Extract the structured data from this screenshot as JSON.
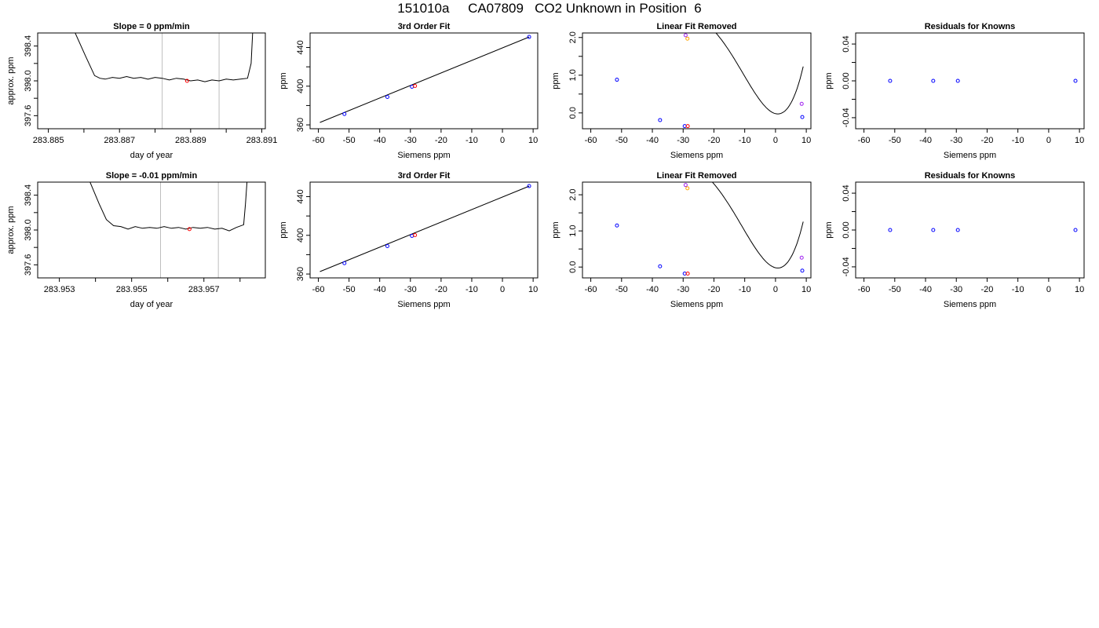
{
  "page_title": "151010a     CA07809   CO2 Unknown in Position  6",
  "colors": {
    "axis": "#000000",
    "line": "#000000",
    "guide": "#bebebe",
    "blue": "#0000ff",
    "red": "#ff0000",
    "orange": "#ffa500",
    "purple": "#a020f0"
  },
  "chart_data": [
    {
      "type": "line",
      "title": "Slope =  0  ppm/min",
      "xlabel": "day of year",
      "ylabel": "approx. ppm",
      "xlim": [
        283.8847,
        283.8911
      ],
      "ylim": [
        397.45,
        398.55
      ],
      "xticks": [
        283.885,
        283.886,
        283.887,
        283.888,
        283.889,
        283.89,
        283.891
      ],
      "xtick_labels": [
        "283.885",
        "",
        "283.887",
        "",
        "283.889",
        "",
        "283.891"
      ],
      "yticks": [
        397.6,
        397.8,
        398.0,
        398.2,
        398.4
      ],
      "ytick_labels": [
        "397.6",
        "",
        "398.0",
        "",
        "398.4"
      ],
      "vlines": [
        283.8882,
        283.8898
      ],
      "series": [
        {
          "values": [
            [
              283.8857,
              398.6
            ],
            [
              283.88605,
              398.28
            ],
            [
              283.8863,
              398.06
            ],
            [
              283.88645,
              398.03
            ],
            [
              283.8866,
              398.02
            ],
            [
              283.8868,
              398.04
            ],
            [
              283.887,
              398.03
            ],
            [
              283.8872,
              398.05
            ],
            [
              283.8874,
              398.03
            ],
            [
              283.8876,
              398.04
            ],
            [
              283.8878,
              398.02
            ],
            [
              283.888,
              398.04
            ],
            [
              283.8882,
              398.03
            ],
            [
              283.8884,
              398.01
            ],
            [
              283.8886,
              398.03
            ],
            [
              283.8888,
              398.02
            ],
            [
              283.889,
              398.0
            ],
            [
              283.8892,
              398.01
            ],
            [
              283.8894,
              397.99
            ],
            [
              283.8896,
              398.01
            ],
            [
              283.8898,
              398.0
            ],
            [
              283.89,
              398.02
            ],
            [
              283.8902,
              398.01
            ],
            [
              283.8904,
              398.02
            ],
            [
              283.8906,
              398.03
            ],
            [
              283.8907,
              398.2
            ],
            [
              283.89075,
              398.6
            ]
          ]
        }
      ],
      "points": [
        {
          "x": 283.8889,
          "y": 398.0,
          "color": "red"
        }
      ]
    },
    {
      "type": "scatter",
      "title": "3rd Order Fit",
      "xlabel": "Siemens ppm",
      "ylabel": "ppm",
      "xlim": [
        -62.7,
        11.5
      ],
      "ylim": [
        356,
        455
      ],
      "xticks": [
        -60,
        -50,
        -40,
        -30,
        -20,
        -10,
        0,
        10
      ],
      "xtick_labels": [
        "-60",
        "-50",
        "-40",
        "-30",
        "-20",
        "-10",
        "0",
        "10"
      ],
      "yticks": [
        360,
        380,
        400,
        420,
        440
      ],
      "ytick_labels": [
        "360",
        "",
        "400",
        "",
        "440"
      ],
      "curve": [
        [
          -59.5,
          362.5
        ],
        [
          8.7,
          450.9
        ]
      ],
      "points": [
        {
          "x": -51.5,
          "y": 371.2,
          "color": "blue"
        },
        {
          "x": -37.5,
          "y": 388.9,
          "color": "blue"
        },
        {
          "x": -29.5,
          "y": 399.4,
          "color": "blue"
        },
        {
          "x": -28.5,
          "y": 400.2,
          "color": "red"
        },
        {
          "x": 8.7,
          "y": 450.9,
          "color": "blue"
        }
      ]
    },
    {
      "type": "scatter",
      "title": "Linear Fit Removed",
      "xlabel": "Siemens ppm",
      "ylabel": "ppm",
      "xlim": [
        -62.7,
        11.5
      ],
      "ylim": [
        -0.42,
        2.12
      ],
      "xticks": [
        -60,
        -50,
        -40,
        -30,
        -20,
        -10,
        0,
        10
      ],
      "xtick_labels": [
        "-60",
        "-50",
        "-40",
        "-30",
        "-20",
        "-10",
        "0",
        "10"
      ],
      "yticks": [
        0.0,
        0.5,
        1.0,
        1.5,
        2.0
      ],
      "ytick_labels": [
        "0.0",
        "",
        "1.0",
        "",
        "2.0"
      ],
      "curve_poly": [
        -0.02,
        -0.02,
        0.0125,
        0.00052,
        6e-06
      ],
      "curve_range": [
        -59.5,
        9.0
      ],
      "points": [
        {
          "x": -51.5,
          "y": 0.88,
          "color": "blue"
        },
        {
          "x": -37.5,
          "y": -0.19,
          "color": "blue"
        },
        {
          "x": -29.5,
          "y": -0.35,
          "color": "blue"
        },
        {
          "x": -28.5,
          "y": -0.35,
          "color": "red"
        },
        {
          "x": 8.7,
          "y": -0.11,
          "color": "blue"
        },
        {
          "x": -29.2,
          "y": 2.06,
          "color": "purple"
        },
        {
          "x": -28.6,
          "y": 1.97,
          "color": "orange"
        },
        {
          "x": 8.5,
          "y": 0.24,
          "color": "purple"
        }
      ]
    },
    {
      "type": "scatter",
      "title": "Residuals for Knowns",
      "xlabel": "Siemens ppm",
      "ylabel": "ppm",
      "xlim": [
        -62.7,
        11.5
      ],
      "ylim": [
        -0.052,
        0.052
      ],
      "xticks": [
        -60,
        -50,
        -40,
        -30,
        -20,
        -10,
        0,
        10
      ],
      "xtick_labels": [
        "-60",
        "-50",
        "-40",
        "-30",
        "-20",
        "-10",
        "0",
        "10"
      ],
      "yticks": [
        -0.04,
        -0.02,
        0.0,
        0.02,
        0.04
      ],
      "ytick_labels": [
        "-0.04",
        "",
        "0.00",
        "",
        "0.04"
      ],
      "points": [
        {
          "x": -51.5,
          "y": 0.0,
          "color": "blue"
        },
        {
          "x": -37.5,
          "y": 0.0,
          "color": "blue"
        },
        {
          "x": -29.5,
          "y": 0.0,
          "color": "blue"
        },
        {
          "x": 8.7,
          "y": 0.0,
          "color": "blue"
        }
      ]
    },
    {
      "type": "line",
      "title": "Slope =  -0.01  ppm/min",
      "xlabel": "day of year",
      "ylabel": "approx. ppm",
      "xlim": [
        283.9524,
        283.9587
      ],
      "ylim": [
        397.45,
        398.55
      ],
      "xticks": [
        283.953,
        283.954,
        283.955,
        283.956,
        283.957,
        283.958
      ],
      "xtick_labels": [
        "283.953",
        "",
        "283.955",
        "",
        "283.957",
        ""
      ],
      "yticks": [
        397.6,
        397.8,
        398.0,
        398.2,
        398.4
      ],
      "ytick_labels": [
        "397.6",
        "",
        "398.0",
        "",
        "398.4"
      ],
      "vlines": [
        283.9558,
        283.9574
      ],
      "series": [
        {
          "values": [
            [
              283.9538,
              398.6
            ],
            [
              283.9541,
              398.3
            ],
            [
              283.9543,
              398.12
            ],
            [
              283.9545,
              398.05
            ],
            [
              283.9547,
              398.04
            ],
            [
              283.9549,
              398.01
            ],
            [
              283.9551,
              398.04
            ],
            [
              283.9553,
              398.02
            ],
            [
              283.9555,
              398.03
            ],
            [
              283.9557,
              398.02
            ],
            [
              283.9559,
              398.04
            ],
            [
              283.9561,
              398.02
            ],
            [
              283.9563,
              398.03
            ],
            [
              283.9565,
              398.01
            ],
            [
              283.9567,
              398.03
            ],
            [
              283.9569,
              398.02
            ],
            [
              283.9571,
              398.03
            ],
            [
              283.9573,
              398.01
            ],
            [
              283.9575,
              398.02
            ],
            [
              283.9577,
              397.99
            ],
            [
              283.9579,
              398.03
            ],
            [
              283.9581,
              398.06
            ],
            [
              283.95815,
              398.3
            ],
            [
              283.9582,
              398.6
            ]
          ]
        }
      ],
      "points": [
        {
          "x": 283.9566,
          "y": 398.01,
          "color": "red"
        }
      ]
    },
    {
      "type": "scatter",
      "title": "3rd Order Fit",
      "xlabel": "Siemens ppm",
      "ylabel": "ppm",
      "xlim": [
        -62.7,
        11.5
      ],
      "ylim": [
        356,
        455
      ],
      "xticks": [
        -60,
        -50,
        -40,
        -30,
        -20,
        -10,
        0,
        10
      ],
      "xtick_labels": [
        "-60",
        "-50",
        "-40",
        "-30",
        "-20",
        "-10",
        "0",
        "10"
      ],
      "yticks": [
        360,
        380,
        400,
        420,
        440
      ],
      "ytick_labels": [
        "360",
        "",
        "400",
        "",
        "440"
      ],
      "curve": [
        [
          -59.5,
          362.5
        ],
        [
          8.7,
          450.9
        ]
      ],
      "points": [
        {
          "x": -51.5,
          "y": 371.2,
          "color": "blue"
        },
        {
          "x": -37.5,
          "y": 388.9,
          "color": "blue"
        },
        {
          "x": -29.5,
          "y": 399.4,
          "color": "blue"
        },
        {
          "x": -28.5,
          "y": 400.2,
          "color": "red"
        },
        {
          "x": 8.7,
          "y": 450.9,
          "color": "blue"
        }
      ]
    },
    {
      "type": "scatter",
      "title": "Linear Fit Removed",
      "xlabel": "Siemens ppm",
      "ylabel": "ppm",
      "xlim": [
        -62.7,
        11.5
      ],
      "ylim": [
        -0.3,
        2.35
      ],
      "xticks": [
        -60,
        -50,
        -40,
        -30,
        -20,
        -10,
        0,
        10
      ],
      "xtick_labels": [
        "-60",
        "-50",
        "-40",
        "-30",
        "-20",
        "-10",
        "0",
        "10"
      ],
      "yticks": [
        0.0,
        0.5,
        1.0,
        1.5,
        2.0
      ],
      "ytick_labels": [
        "0.0",
        "",
        "1.0",
        "",
        "2.0"
      ],
      "curve_poly": [
        -0.02,
        -0.02,
        0.0128,
        0.00052,
        6e-06
      ],
      "curve_range": [
        -59.5,
        9.0
      ],
      "points": [
        {
          "x": -51.5,
          "y": 1.15,
          "color": "blue"
        },
        {
          "x": -37.5,
          "y": 0.02,
          "color": "blue"
        },
        {
          "x": -29.5,
          "y": -0.18,
          "color": "blue"
        },
        {
          "x": -28.5,
          "y": -0.18,
          "color": "red"
        },
        {
          "x": 8.7,
          "y": -0.1,
          "color": "blue"
        },
        {
          "x": -29.2,
          "y": 2.27,
          "color": "purple"
        },
        {
          "x": -28.6,
          "y": 2.18,
          "color": "orange"
        },
        {
          "x": 8.5,
          "y": 0.26,
          "color": "purple"
        }
      ]
    },
    {
      "type": "scatter",
      "title": "Residuals for Knowns",
      "xlabel": "Siemens ppm",
      "ylabel": "ppm",
      "xlim": [
        -62.7,
        11.5
      ],
      "ylim": [
        -0.052,
        0.052
      ],
      "xticks": [
        -60,
        -50,
        -40,
        -30,
        -20,
        -10,
        0,
        10
      ],
      "xtick_labels": [
        "-60",
        "-50",
        "-40",
        "-30",
        "-20",
        "-10",
        "0",
        "10"
      ],
      "yticks": [
        -0.04,
        -0.02,
        0.0,
        0.02,
        0.04
      ],
      "ytick_labels": [
        "-0.04",
        "",
        "0.00",
        "",
        "0.04"
      ],
      "points": [
        {
          "x": -51.5,
          "y": 0.0,
          "color": "blue"
        },
        {
          "x": -37.5,
          "y": 0.0,
          "color": "blue"
        },
        {
          "x": -29.5,
          "y": 0.0,
          "color": "blue"
        },
        {
          "x": 8.7,
          "y": 0.0,
          "color": "blue"
        }
      ]
    }
  ]
}
